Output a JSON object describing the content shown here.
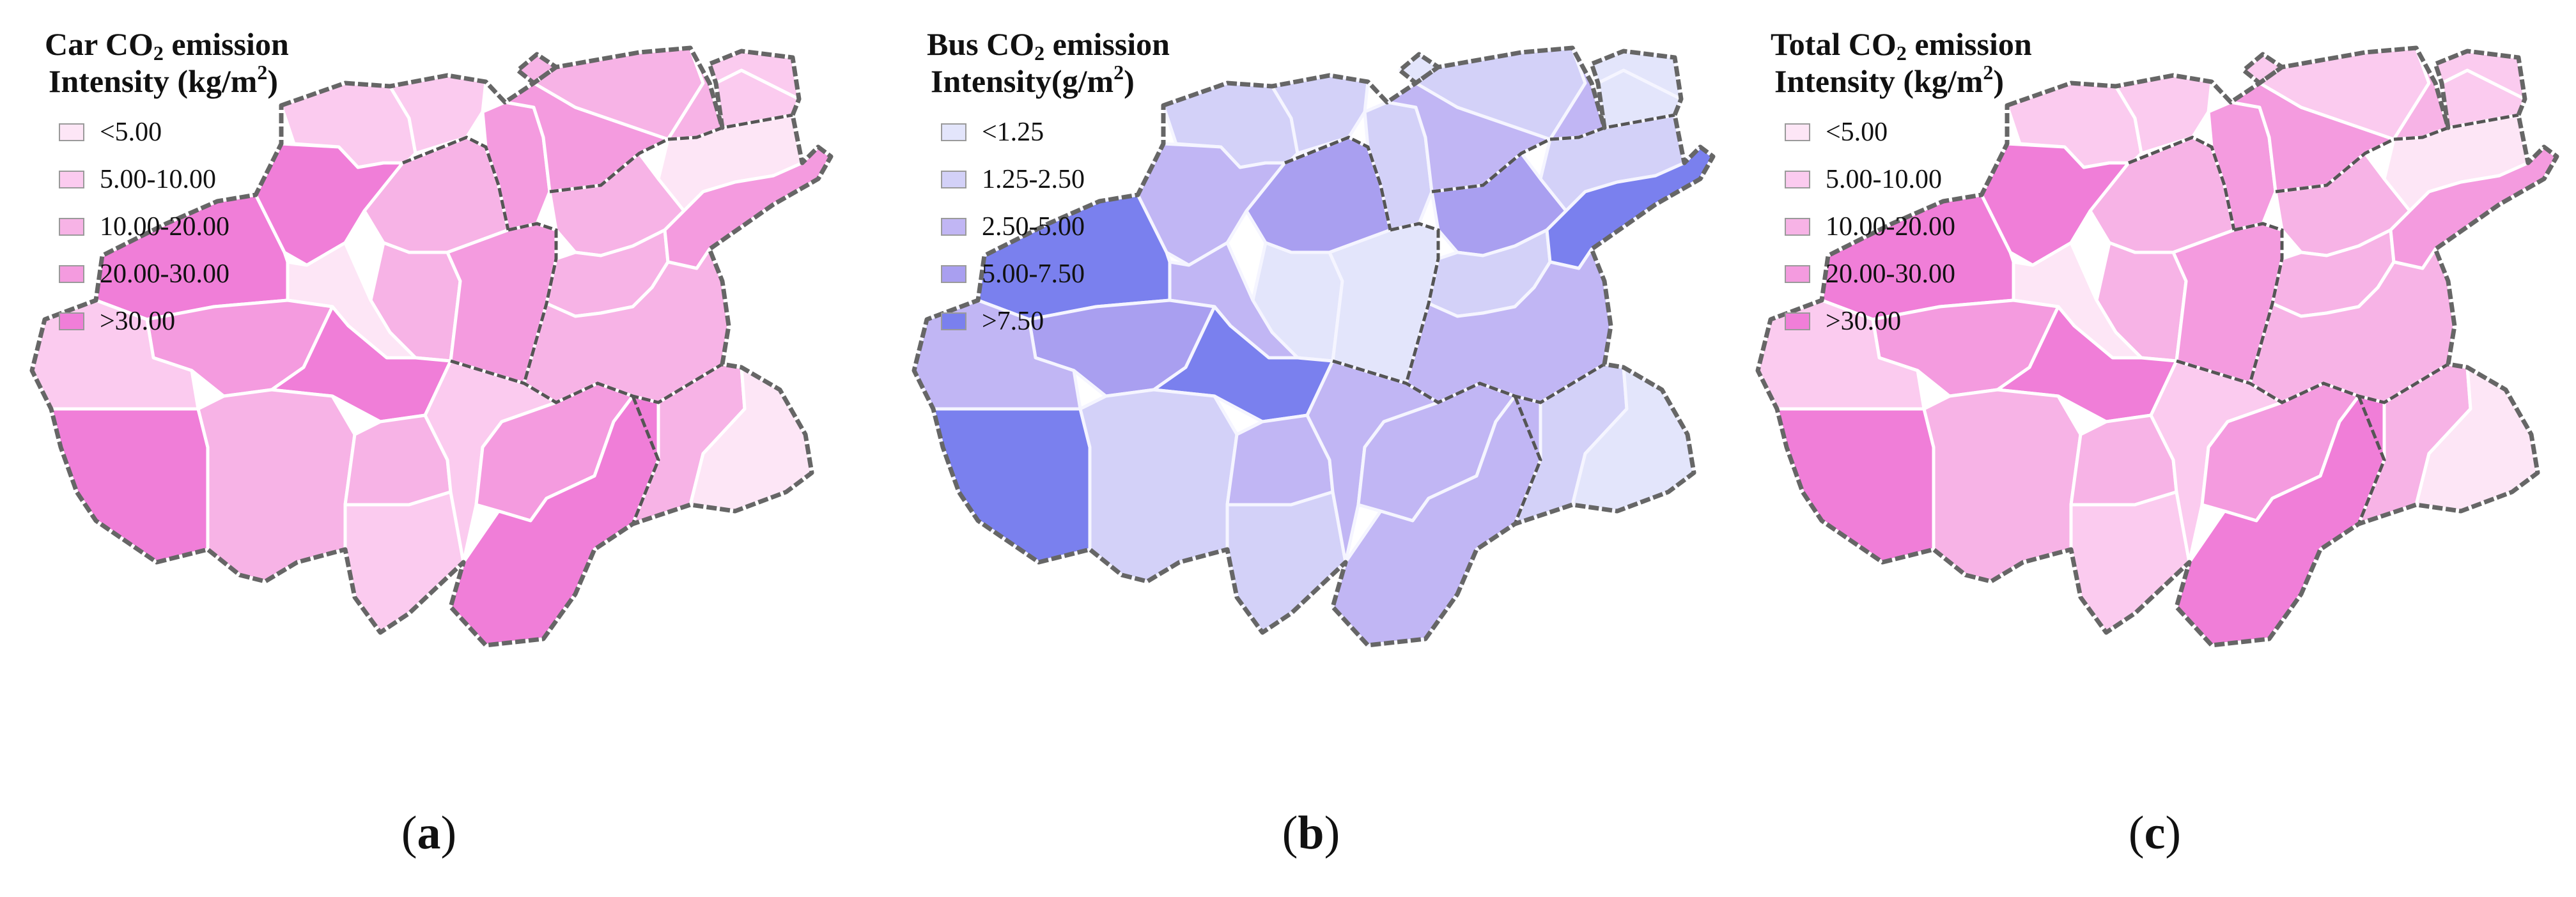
{
  "panels": [
    {
      "id": "a",
      "caption": "a",
      "title_line1_pre": "Car CO",
      "title_line1_sub": "2",
      "title_line1_post": " emission",
      "title_line2_pre": "Intensity (kg/m",
      "title_line2_sup": "2",
      "title_line2_post": ")",
      "legend": [
        {
          "label": "<5.00",
          "color": "#fde6f6"
        },
        {
          "label": "5.00-10.00",
          "color": "#fbcbef"
        },
        {
          "label": "10.00-20.00",
          "color": "#f7b3e6"
        },
        {
          "label": "20.00-30.00",
          "color": "#f49bdf"
        },
        {
          "label": ">30.00",
          "color": "#f07ed8"
        }
      ]
    },
    {
      "id": "b",
      "caption": "b",
      "title_line1_pre": "Bus CO",
      "title_line1_sub": "2",
      "title_line1_post": " emission",
      "title_line2_pre": "Intensity(g/m",
      "title_line2_sup": "2",
      "title_line2_post": ")",
      "legend": [
        {
          "label": "<1.25",
          "color": "#e3e5fb"
        },
        {
          "label": "1.25-2.50",
          "color": "#d3d1f8"
        },
        {
          "label": "2.50-5.00",
          "color": "#c1b6f4"
        },
        {
          "label": "5.00-7.50",
          "color": "#a99ff0"
        },
        {
          "label": ">7.50",
          "color": "#7a80ee"
        }
      ]
    },
    {
      "id": "c",
      "caption": "c",
      "title_line1_pre": "Total CO",
      "title_line1_sub": "2",
      "title_line1_post": " emission",
      "title_line2_pre": "Intensity (kg/m",
      "title_line2_sup": "2",
      "title_line2_post": ")",
      "legend": [
        {
          "label": "<5.00",
          "color": "#fde6f6"
        },
        {
          "label": "5.00-10.00",
          "color": "#fbcbef"
        },
        {
          "label": "10.00-20.00",
          "color": "#f7b3e6"
        },
        {
          "label": "20.00-30.00",
          "color": "#f49bdf"
        },
        {
          "label": ">30.00",
          "color": "#f07ed8"
        }
      ]
    }
  ],
  "region_classes": {
    "a": [
      1,
      1,
      2,
      3,
      3,
      2,
      2,
      2,
      2,
      0,
      1,
      1,
      4,
      2,
      3,
      0,
      4,
      3,
      4,
      1,
      4,
      2,
      2,
      1,
      1,
      2,
      3,
      2,
      3,
      4,
      2,
      0
    ],
    "b": [
      1,
      1,
      3,
      1,
      2,
      1,
      0,
      2,
      3,
      1,
      0,
      0,
      2,
      0,
      0,
      2,
      4,
      3,
      4,
      2,
      4,
      1,
      2,
      1,
      2,
      1,
      4,
      2,
      2,
      2,
      1,
      0
    ],
    "c": [
      1,
      1,
      2,
      3,
      3,
      1,
      1,
      2,
      2,
      0,
      1,
      1,
      4,
      2,
      3,
      0,
      4,
      3,
      4,
      1,
      4,
      2,
      2,
      1,
      1,
      2,
      3,
      2,
      3,
      4,
      2,
      0
    ]
  }
}
